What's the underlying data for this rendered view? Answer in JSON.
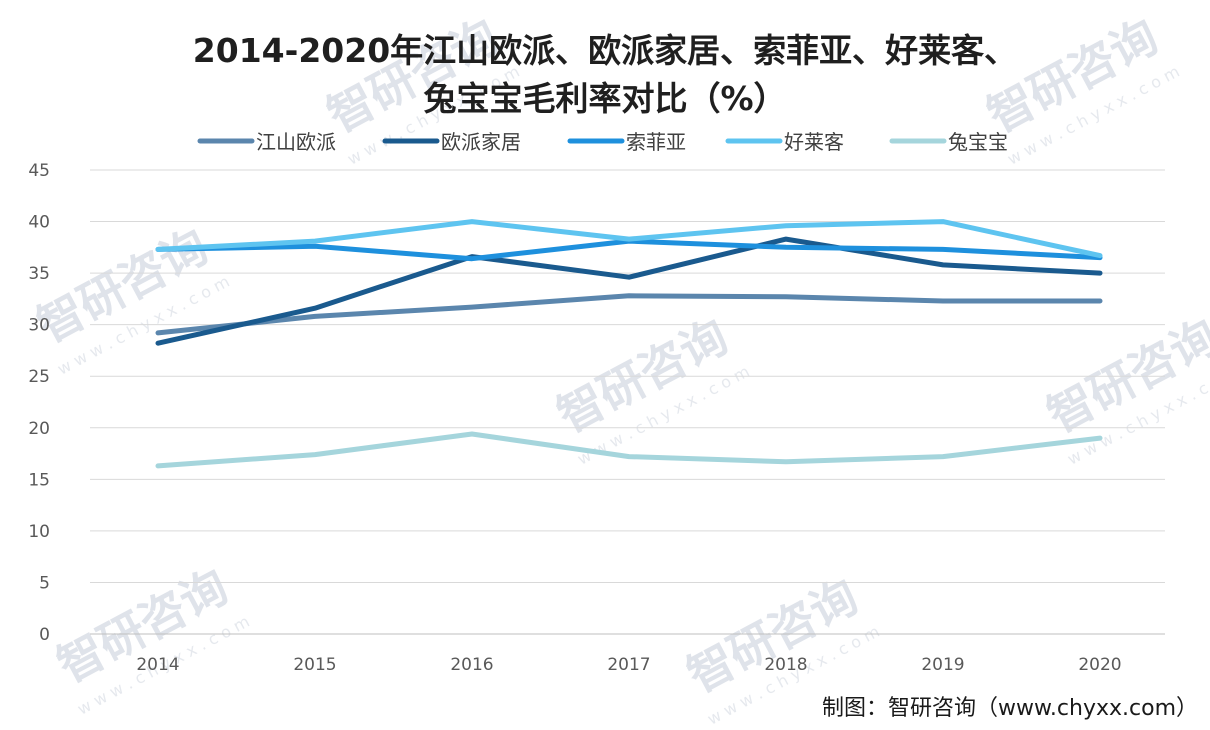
{
  "chart_data": {
    "type": "line",
    "title_lines": [
      "2014-2020年江山欧派、欧派家居、索菲亚、好莱客、",
      "兔宝宝毛利率对比（%）"
    ],
    "x": [
      "2014",
      "2015",
      "2016",
      "2017",
      "2018",
      "2019",
      "2020"
    ],
    "ylim": [
      0,
      45
    ],
    "yticks": [
      0,
      5,
      10,
      15,
      20,
      25,
      30,
      35,
      40,
      45
    ],
    "grid": true,
    "legend_position": "top",
    "series": [
      {
        "name": "江山欧派",
        "color": "#5b86ad",
        "values": [
          29.2,
          30.8,
          31.7,
          32.8,
          32.7,
          32.3,
          32.3
        ]
      },
      {
        "name": "欧派家居",
        "color": "#1a5a8e",
        "values": [
          28.2,
          31.6,
          36.6,
          34.6,
          38.3,
          35.8,
          35.0
        ]
      },
      {
        "name": "索菲亚",
        "color": "#1e90dd",
        "values": [
          37.3,
          37.6,
          36.4,
          38.1,
          37.5,
          37.3,
          36.5
        ]
      },
      {
        "name": "好莱客",
        "color": "#5ec4f0",
        "values": [
          37.3,
          38.1,
          40.0,
          38.3,
          39.6,
          40.0,
          36.7
        ]
      },
      {
        "name": "兔宝宝",
        "color": "#a5d5dc",
        "values": [
          16.3,
          17.4,
          19.4,
          17.2,
          16.7,
          17.2,
          19.0
        ]
      }
    ]
  },
  "source": "制图：智研咨询（www.chyxx.com）",
  "watermark": {
    "text": "智研咨询",
    "url": "w w w . c h y x x . c o m"
  }
}
